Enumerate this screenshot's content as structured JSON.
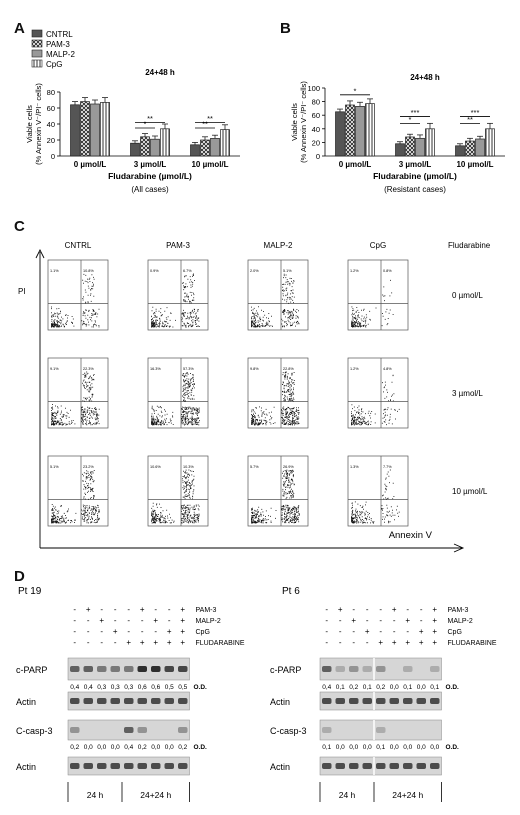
{
  "panels": {
    "a": "A",
    "b": "B",
    "c": "C",
    "d": "D"
  },
  "legend": [
    "CNTRL",
    "PAM-3",
    "MALP-2",
    "CpG"
  ],
  "chart_data": [
    {
      "type": "bar",
      "title": "24+48 h",
      "ylabel": "Viable cells (% Annexin V⁻/PI⁻ cells)",
      "xlabel": "Fludarabine (µmol/L)",
      "subtitle": "(All cases)",
      "categories": [
        "0 µmol/L",
        "3 µmol/L",
        "10 µmol/L"
      ],
      "ylim": [
        0,
        80
      ],
      "yticks": [
        0,
        20,
        40,
        60,
        80
      ],
      "series": [
        {
          "name": "CNTRL",
          "values": [
            64,
            16,
            14
          ],
          "errors": [
            4,
            3,
            3
          ]
        },
        {
          "name": "PAM-3",
          "values": [
            68,
            24,
            20
          ],
          "errors": [
            5,
            4,
            4
          ]
        },
        {
          "name": "MALP-2",
          "values": [
            65,
            21,
            22
          ],
          "errors": [
            5,
            4,
            4
          ]
        },
        {
          "name": "CpG",
          "values": [
            67,
            34,
            33
          ],
          "errors": [
            6,
            6,
            6
          ]
        }
      ],
      "significance": [
        {
          "group": 1,
          "from": 0,
          "to": 3,
          "label": "**",
          "level": 42
        },
        {
          "group": 1,
          "from": 0,
          "to": 2,
          "label": "*",
          "level": 35
        },
        {
          "group": 2,
          "from": 0,
          "to": 3,
          "label": "**",
          "level": 42
        },
        {
          "group": 2,
          "from": 0,
          "to": 2,
          "label": "**",
          "level": 35
        }
      ]
    },
    {
      "type": "bar",
      "title": "24+48 h",
      "ylabel": "Viable cells (% Annexin V⁻/PI⁻ cells)",
      "xlabel": "Fludarabine (µmol/L)",
      "subtitle": "(Resistant cases)",
      "categories": [
        "0 µmol/L",
        "3 µmol/L",
        "10 µmol/L"
      ],
      "ylim": [
        0,
        100
      ],
      "yticks": [
        0,
        20,
        40,
        60,
        80,
        100
      ],
      "series": [
        {
          "name": "CNTRL",
          "values": [
            65,
            18,
            15
          ],
          "errors": [
            4,
            3,
            3
          ]
        },
        {
          "name": "PAM-3",
          "values": [
            75,
            28,
            22
          ],
          "errors": [
            6,
            4,
            4
          ]
        },
        {
          "name": "MALP-2",
          "values": [
            73,
            26,
            25
          ],
          "errors": [
            6,
            5,
            4
          ]
        },
        {
          "name": "CpG",
          "values": [
            77,
            40,
            40
          ],
          "errors": [
            7,
            8,
            8
          ]
        }
      ],
      "significance": [
        {
          "group": 0,
          "from": 0,
          "to": 3,
          "label": "*",
          "level": 90
        },
        {
          "group": 1,
          "from": 0,
          "to": 3,
          "label": "***",
          "level": 58
        },
        {
          "group": 1,
          "from": 0,
          "to": 2,
          "label": "*",
          "level": 48
        },
        {
          "group": 2,
          "from": 0,
          "to": 3,
          "label": "***",
          "level": 58
        },
        {
          "group": 2,
          "from": 0,
          "to": 2,
          "label": "**",
          "level": 48
        }
      ]
    }
  ],
  "flow": {
    "columns": [
      "CNTRL",
      "PAM-3",
      "MALP-2",
      "CpG"
    ],
    "fludarabine_label": "Fludarabine",
    "rows": [
      "0 µmol/L",
      "3 µmol/L",
      "10 µmol/L"
    ],
    "x_axis": "Annexin V",
    "y_axis": "PI",
    "quadrant_values": [
      [
        [
          "1.1%",
          "10.8%",
          "",
          ""
        ],
        [
          "0.9%",
          "6.7%",
          "",
          ""
        ],
        [
          "2.0%",
          "5.1%",
          "",
          ""
        ],
        [
          "1.2%",
          "0.8%",
          "",
          ""
        ]
      ],
      [
        [
          "9.1%",
          "22.3%",
          "",
          ""
        ],
        [
          "16.3%",
          "57.3%",
          "",
          ""
        ],
        [
          "9.8%",
          "22.8%",
          "",
          ""
        ],
        [
          "1.2%",
          "4.8%",
          "",
          ""
        ]
      ],
      [
        [
          "5.1%",
          "23.2%",
          "",
          ""
        ],
        [
          "10.6%",
          "10.3%",
          "",
          ""
        ],
        [
          "5.7%",
          "26.9%",
          "",
          ""
        ],
        [
          "1.3%",
          "7.7%",
          "",
          ""
        ]
      ]
    ]
  },
  "western": [
    {
      "patient": "Pt 19",
      "treatments": [
        "PAM-3",
        "MALP-2",
        "CpG",
        "FLUDARABINE"
      ],
      "signs": [
        [
          "-",
          "+",
          "-",
          "-",
          "-",
          "+",
          "-",
          "-",
          "+"
        ],
        [
          "-",
          "-",
          "+",
          "-",
          "-",
          "-",
          "+",
          "-",
          "+"
        ],
        [
          "-",
          "-",
          "-",
          "+",
          "-",
          "-",
          "-",
          "+",
          "+"
        ],
        [
          "-",
          "-",
          "-",
          "-",
          "+",
          "+",
          "+",
          "+",
          "+"
        ]
      ],
      "blots": [
        {
          "label": "c-PARP",
          "od": [
            "0,4",
            "0,4",
            "0,3",
            "0,3",
            "0,3",
            "0,6",
            "0,6",
            "0,5",
            "0,5"
          ]
        },
        {
          "label": "Actin",
          "od": []
        },
        {
          "label": "C-casp-3",
          "od": [
            "0,2",
            "0,0",
            "0,0",
            "0,0",
            "0,4",
            "0,2",
            "0,0",
            "0,0",
            "0,2"
          ]
        },
        {
          "label": "Actin",
          "od": []
        }
      ],
      "times": [
        "24 h",
        "24+24 h"
      ]
    },
    {
      "patient": "Pt 6",
      "treatments": [
        "PAM-3",
        "MALP-2",
        "CpG",
        "FLUDARABINE"
      ],
      "signs": [
        [
          "-",
          "+",
          "-",
          "-",
          "-",
          "+",
          "-",
          "-",
          "+"
        ],
        [
          "-",
          "-",
          "+",
          "-",
          "-",
          "-",
          "+",
          "-",
          "+"
        ],
        [
          "-",
          "-",
          "-",
          "+",
          "-",
          "-",
          "-",
          "+",
          "+"
        ],
        [
          "-",
          "-",
          "-",
          "-",
          "+",
          "+",
          "+",
          "+",
          "+"
        ]
      ],
      "blots": [
        {
          "label": "c-PARP",
          "od": [
            "0,4",
            "0,1",
            "0,2",
            "0,1",
            "0,2",
            "0,0",
            "0,1",
            "0,0",
            "0,1"
          ]
        },
        {
          "label": "Actin",
          "od": []
        },
        {
          "label": "C-casp-3",
          "od": [
            "0,1",
            "0,0",
            "0,0",
            "0,0",
            "0,1",
            "0,0",
            "0,0",
            "0,0",
            "0,0"
          ]
        },
        {
          "label": "Actin",
          "od": []
        }
      ],
      "times": [
        "24 h",
        "24+24 h"
      ]
    }
  ],
  "od_label": "O.D."
}
